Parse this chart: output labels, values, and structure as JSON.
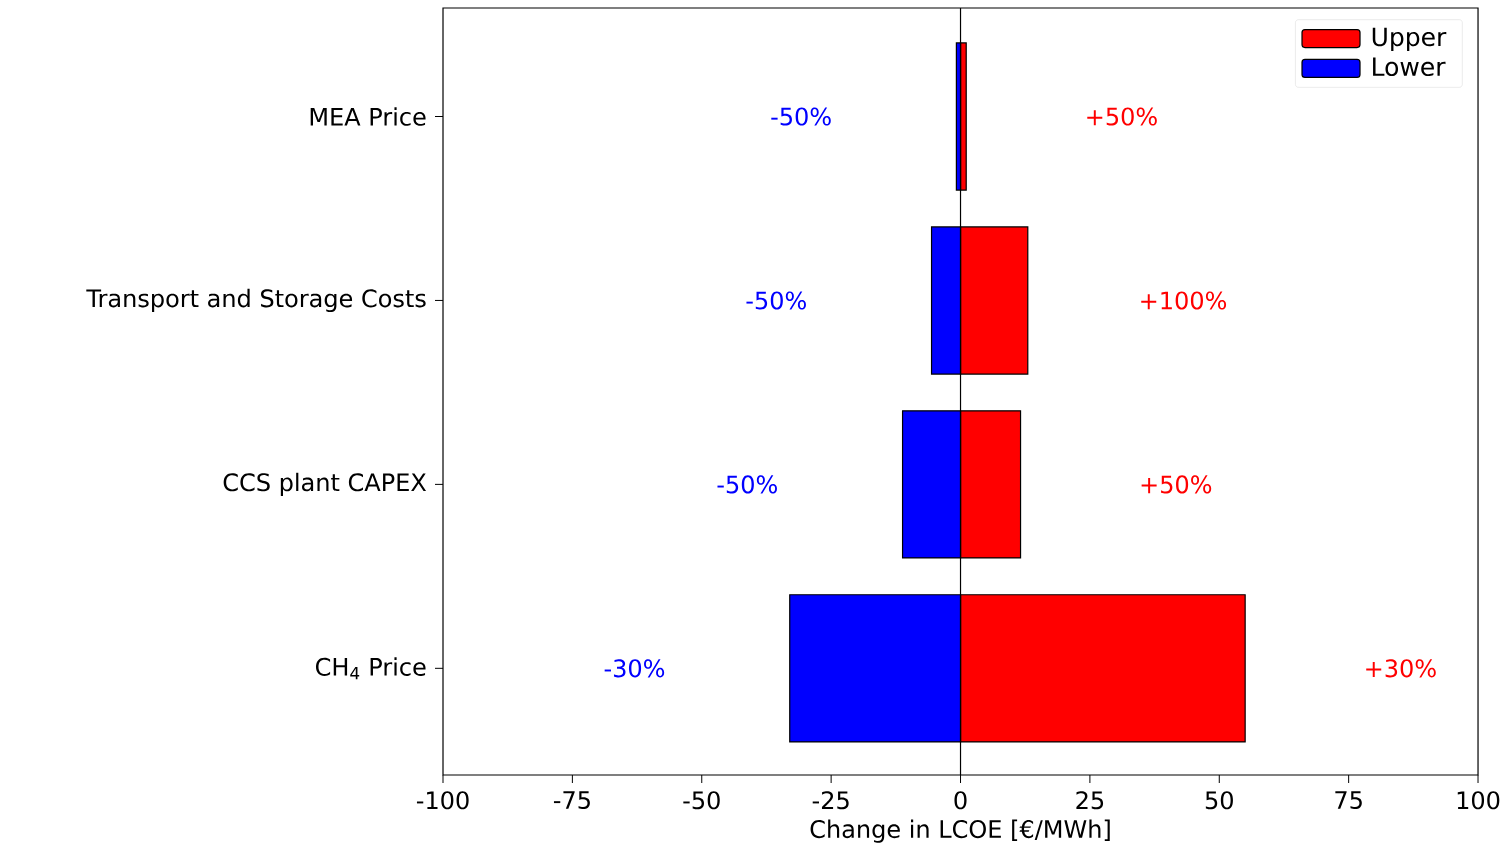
{
  "chart_data": {
    "type": "bar",
    "orientation": "horizontal",
    "xlabel": "Change in LCOE [€/MWh]",
    "categories": [
      "MEA Price",
      "Transport and Storage Costs",
      "CCS plant CAPEX",
      "CH$_{4}$ Price"
    ],
    "series": [
      {
        "name": "Upper",
        "color": "#ff0000",
        "values": [
          1.1,
          13.0,
          11.6,
          55
        ]
      },
      {
        "name": "Lower",
        "color": "#0000ff",
        "values": [
          -0.8,
          -5.6,
          -11.2,
          -33
        ]
      }
    ],
    "xlim": [
      -100,
      100
    ],
    "xticks": [
      -100,
      -75,
      -50,
      -25,
      0,
      25,
      50,
      75,
      100
    ],
    "ref_lines": [
      {
        "axis": "x",
        "value": 0,
        "color": "#000000"
      }
    ],
    "annotations": [
      "-50%",
      "+50%",
      "-50%",
      "+100%",
      "-50%",
      "+50%",
      "-30%",
      "+30%"
    ],
    "stacked": true,
    "legend": "top right"
  }
}
